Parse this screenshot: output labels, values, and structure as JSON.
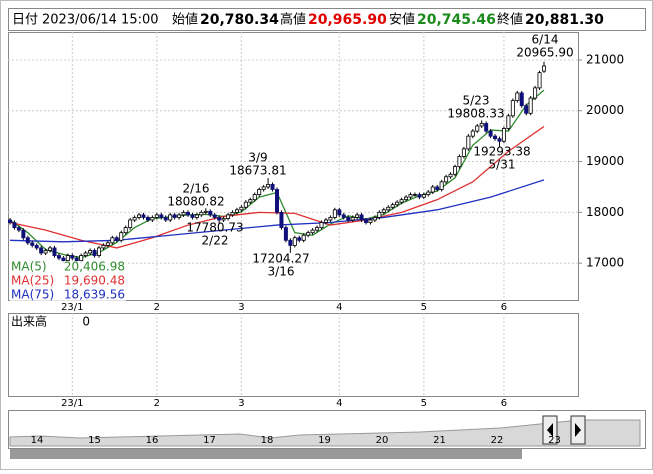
{
  "chart_data": {
    "type": "candlestick",
    "header": [
      {
        "label": "日付",
        "value": "2023/06/14 15:00"
      },
      {
        "label": "始値",
        "value": "20,780.34"
      },
      {
        "label": "高値",
        "value": "20,965.90"
      },
      {
        "label": "安値",
        "value": "20,745.46"
      },
      {
        "label": "終値",
        "value": "20,881.30"
      }
    ],
    "ylim": [
      16275,
      21550
    ],
    "yticks": [
      17000,
      18000,
      19000,
      20000,
      21000
    ],
    "grid": true,
    "xticks": [
      {
        "value": 14,
        "label": "23/1"
      },
      {
        "value": 33,
        "label": "2"
      },
      {
        "value": 52,
        "label": "3"
      },
      {
        "value": 74,
        "label": "4"
      },
      {
        "value": 93,
        "label": "5"
      },
      {
        "value": 111,
        "label": "6"
      }
    ],
    "up_color": "#ffffff",
    "down_color": "#10107a",
    "ohlc": [
      [
        17850,
        17890,
        17760,
        17800
      ],
      [
        17800,
        17840,
        17660,
        17700
      ],
      [
        17700,
        17740,
        17610,
        17650
      ],
      [
        17650,
        17690,
        17460,
        17500
      ],
      [
        17500,
        17540,
        17360,
        17400
      ],
      [
        17400,
        17440,
        17310,
        17350
      ],
      [
        17350,
        17390,
        17260,
        17300
      ],
      [
        17300,
        17340,
        17160,
        17200
      ],
      [
        17200,
        17290,
        17160,
        17250
      ],
      [
        17250,
        17340,
        17210,
        17300
      ],
      [
        17300,
        17340,
        17110,
        17150
      ],
      [
        17150,
        17190,
        17060,
        17100
      ],
      [
        17100,
        17140,
        17010,
        17050
      ],
      [
        17050,
        17190,
        17010,
        17150
      ],
      [
        17150,
        17190,
        17060,
        17100
      ],
      [
        17100,
        17140,
        17010,
        17050
      ],
      [
        17050,
        17190,
        17010,
        17150
      ],
      [
        17150,
        17240,
        17110,
        17200
      ],
      [
        17200,
        17290,
        17160,
        17250
      ],
      [
        17250,
        17290,
        17110,
        17150
      ],
      [
        17150,
        17340,
        17110,
        17300
      ],
      [
        17300,
        17390,
        17260,
        17350
      ],
      [
        17350,
        17440,
        17310,
        17400
      ],
      [
        17400,
        17540,
        17360,
        17500
      ],
      [
        17500,
        17540,
        17410,
        17450
      ],
      [
        17450,
        17640,
        17410,
        17600
      ],
      [
        17600,
        17740,
        17560,
        17700
      ],
      [
        17700,
        17890,
        17660,
        17850
      ],
      [
        17850,
        17940,
        17810,
        17900
      ],
      [
        17900,
        17990,
        17860,
        17950
      ],
      [
        17950,
        17990,
        17860,
        17900
      ],
      [
        17900,
        17940,
        17810,
        17850
      ],
      [
        17850,
        17940,
        17810,
        17900
      ],
      [
        17900,
        17990,
        17860,
        17950
      ],
      [
        17950,
        17990,
        17860,
        17900
      ],
      [
        17900,
        17940,
        17810,
        17850
      ],
      [
        17850,
        17990,
        17810,
        17950
      ],
      [
        17950,
        17990,
        17860,
        17900
      ],
      [
        17900,
        17990,
        17860,
        17950
      ],
      [
        17950,
        18040,
        17910,
        18000
      ],
      [
        18000,
        18040,
        17910,
        17950
      ],
      [
        17950,
        17990,
        17860,
        17900
      ],
      [
        17900,
        17990,
        17860,
        17950
      ],
      [
        17950,
        18040,
        17910,
        18000
      ],
      [
        18000,
        18080.82,
        17960,
        18020
      ],
      [
        18020,
        18060,
        17910,
        17950
      ],
      [
        17950,
        17990,
        17860,
        17900
      ],
      [
        17900,
        17940,
        17780.73,
        17850
      ],
      [
        17850,
        17920,
        17810,
        17880
      ],
      [
        17880,
        17990,
        17840,
        17950
      ],
      [
        17950,
        18040,
        17910,
        18000
      ],
      [
        18000,
        18090,
        17960,
        18050
      ],
      [
        18050,
        18140,
        18010,
        18100
      ],
      [
        18100,
        18240,
        18060,
        18200
      ],
      [
        18200,
        18290,
        18160,
        18250
      ],
      [
        18250,
        18390,
        18210,
        18350
      ],
      [
        18350,
        18490,
        18310,
        18450
      ],
      [
        18450,
        18540,
        18410,
        18500
      ],
      [
        18500,
        18673.81,
        18460,
        18550
      ],
      [
        18550,
        18590,
        18410,
        18450
      ],
      [
        18450,
        18490,
        17960,
        18000
      ],
      [
        18000,
        18040,
        17660,
        17700
      ],
      [
        17700,
        17740,
        17410,
        17450
      ],
      [
        17450,
        17490,
        17204.27,
        17350
      ],
      [
        17350,
        17540,
        17310,
        17500
      ],
      [
        17500,
        17540,
        17410,
        17450
      ],
      [
        17450,
        17590,
        17410,
        17550
      ],
      [
        17550,
        17640,
        17510,
        17600
      ],
      [
        17600,
        17690,
        17560,
        17650
      ],
      [
        17650,
        17740,
        17610,
        17700
      ],
      [
        17700,
        17840,
        17660,
        17800
      ],
      [
        17800,
        17890,
        17760,
        17850
      ],
      [
        17850,
        17940,
        17810,
        17900
      ],
      [
        17900,
        18090,
        17860,
        18050
      ],
      [
        18050,
        18090,
        17910,
        17950
      ],
      [
        17950,
        17990,
        17860,
        17900
      ],
      [
        17900,
        17940,
        17810,
        17850
      ],
      [
        17850,
        17940,
        17810,
        17900
      ],
      [
        17900,
        17990,
        17860,
        17950
      ],
      [
        17950,
        17990,
        17810,
        17850
      ],
      [
        17850,
        17890,
        17760,
        17800
      ],
      [
        17800,
        17890,
        17760,
        17850
      ],
      [
        17850,
        17940,
        17810,
        17900
      ],
      [
        17900,
        18040,
        17860,
        18000
      ],
      [
        18000,
        18090,
        17960,
        18050
      ],
      [
        18050,
        18140,
        18010,
        18100
      ],
      [
        18100,
        18190,
        18060,
        18150
      ],
      [
        18150,
        18240,
        18110,
        18200
      ],
      [
        18200,
        18290,
        18160,
        18250
      ],
      [
        18250,
        18340,
        18210,
        18300
      ],
      [
        18300,
        18390,
        18260,
        18350
      ],
      [
        18350,
        18390,
        18310,
        18350
      ],
      [
        18350,
        18390,
        18260,
        18300
      ],
      [
        18300,
        18390,
        18260,
        18350
      ],
      [
        18350,
        18440,
        18310,
        18400
      ],
      [
        18400,
        18540,
        18360,
        18500
      ],
      [
        18500,
        18540,
        18410,
        18450
      ],
      [
        18450,
        18640,
        18410,
        18600
      ],
      [
        18600,
        18740,
        18560,
        18700
      ],
      [
        18700,
        18790,
        18660,
        18750
      ],
      [
        18750,
        18940,
        18710,
        18900
      ],
      [
        18900,
        19140,
        18860,
        19100
      ],
      [
        19100,
        19290,
        19060,
        19250
      ],
      [
        19250,
        19540,
        19210,
        19500
      ],
      [
        19500,
        19640,
        19460,
        19600
      ],
      [
        19600,
        19740,
        19560,
        19700
      ],
      [
        19700,
        19808.33,
        19660,
        19750
      ],
      [
        19750,
        19790,
        19560,
        19600
      ],
      [
        19600,
        19640,
        19460,
        19500
      ],
      [
        19500,
        19540,
        19410,
        19450
      ],
      [
        19450,
        19490,
        19293.38,
        19400
      ],
      [
        19400,
        19690,
        19360,
        19650
      ],
      [
        19650,
        19940,
        19610,
        19900
      ],
      [
        19900,
        20240,
        19860,
        20200
      ],
      [
        20200,
        20390,
        20160,
        20350
      ],
      [
        20350,
        20390,
        20060,
        20100
      ],
      [
        20100,
        20140,
        19910,
        19950
      ],
      [
        19950,
        20290,
        19910,
        20250
      ],
      [
        20250,
        20490,
        20210,
        20450
      ],
      [
        20450,
        20790,
        20410,
        20750
      ],
      [
        20780.34,
        20965.9,
        20745.46,
        20881.3
      ]
    ],
    "series": [
      {
        "name": "MA(5)",
        "color": "#2e8b2e",
        "last_label": "20,406.98",
        "x": [
          0,
          4,
          8,
          12,
          16,
          20,
          24,
          28,
          32,
          36,
          40,
          44,
          48,
          52,
          56,
          60,
          64,
          68,
          72,
          76,
          80,
          84,
          88,
          92,
          96,
          100,
          104,
          108,
          112,
          116,
          120
        ],
        "values": [
          17850,
          17600,
          17270,
          17170,
          17110,
          17210,
          17410,
          17700,
          17880,
          17910,
          17950,
          17960,
          17920,
          18010,
          18300,
          18390,
          17600,
          17550,
          17770,
          17930,
          17870,
          17960,
          18180,
          18330,
          18420,
          18680,
          19320,
          19620,
          19600,
          20110,
          20406.98
        ]
      },
      {
        "name": "MA(25)",
        "color": "#e03030",
        "last_label": "19,690.48",
        "x": [
          0,
          8,
          16,
          24,
          32,
          40,
          48,
          56,
          64,
          72,
          80,
          88,
          96,
          104,
          112,
          120
        ],
        "values": [
          17800,
          17650,
          17450,
          17300,
          17500,
          17750,
          17920,
          18000,
          17980,
          17750,
          17850,
          18000,
          18250,
          18600,
          19200,
          19690.48
        ]
      },
      {
        "name": "MA(75)",
        "color": "#2030c0",
        "last_label": "18,639.56",
        "x": [
          0,
          12,
          24,
          36,
          48,
          60,
          72,
          84,
          96,
          108,
          120
        ],
        "values": [
          17450,
          17420,
          17450,
          17550,
          17650,
          17750,
          17800,
          17900,
          18050,
          18300,
          18639.56
        ]
      }
    ],
    "annotations": [
      {
        "date": "3/9",
        "price": "18673.81"
      },
      {
        "date": "2/16",
        "price": "18080.82"
      },
      {
        "date": "2/22",
        "price": "17780.73"
      },
      {
        "date": "3/16",
        "price": "17204.27"
      },
      {
        "date": "5/23",
        "price": "19808.33"
      },
      {
        "date": "5/31",
        "price": "19293.38"
      },
      {
        "date": "6/14",
        "price": "20965.90"
      }
    ],
    "volume_label": "出来高",
    "volume_value": "0",
    "navigator_labels": [
      "14",
      "15",
      "16",
      "17",
      "18",
      "19",
      "20",
      "21",
      "22",
      "23"
    ]
  }
}
